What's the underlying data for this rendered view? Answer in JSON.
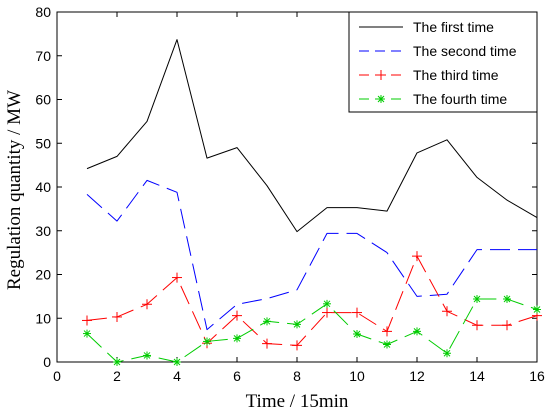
{
  "chart_data": {
    "type": "line",
    "xlabel": "Time / 15min",
    "ylabel": "Regulation quantity / MW",
    "xlim": [
      0,
      16
    ],
    "ylim": [
      0,
      80
    ],
    "xticks": [
      0,
      2,
      4,
      6,
      8,
      10,
      12,
      14,
      16
    ],
    "yticks": [
      0,
      10,
      20,
      30,
      40,
      50,
      60,
      70,
      80
    ],
    "grid": false,
    "legend_position": "top-right",
    "x": [
      1,
      2,
      3,
      4,
      5,
      6,
      7,
      8,
      9,
      10,
      11,
      12,
      13,
      14,
      15,
      16
    ],
    "series": [
      {
        "name": "The first time",
        "color": "#000000",
        "line_style": "solid",
        "marker": "none",
        "values": [
          44.2,
          47,
          55,
          73.7,
          46.6,
          49,
          40.3,
          29.8,
          35.3,
          35.3,
          34.5,
          47.8,
          50.8,
          42.2,
          37,
          33
        ]
      },
      {
        "name": "The second time",
        "color": "#0000ff",
        "line_style": "dashed",
        "marker": "none",
        "values": [
          38.3,
          32.2,
          41.5,
          38.8,
          7.4,
          13.2,
          14.5,
          16.5,
          29.4,
          29.4,
          25,
          15,
          15.5,
          25.7,
          25.7,
          25.7
        ]
      },
      {
        "name": "The third time",
        "color": "#ff0000",
        "line_style": "dashed",
        "marker": "plus",
        "values": [
          9.5,
          10.3,
          13.2,
          19.3,
          4.3,
          10.6,
          4.2,
          3.8,
          11.3,
          11.3,
          7,
          24.2,
          11.6,
          8.4,
          8.4,
          10.6
        ]
      },
      {
        "name": "The fourth time",
        "color": "#00cc00",
        "line_style": "dashed",
        "marker": "star",
        "values": [
          6.5,
          0,
          1.5,
          0,
          4.7,
          5.4,
          9.3,
          8.6,
          13.3,
          6.4,
          4,
          7,
          2,
          14.4,
          14.4,
          12
        ]
      }
    ]
  }
}
